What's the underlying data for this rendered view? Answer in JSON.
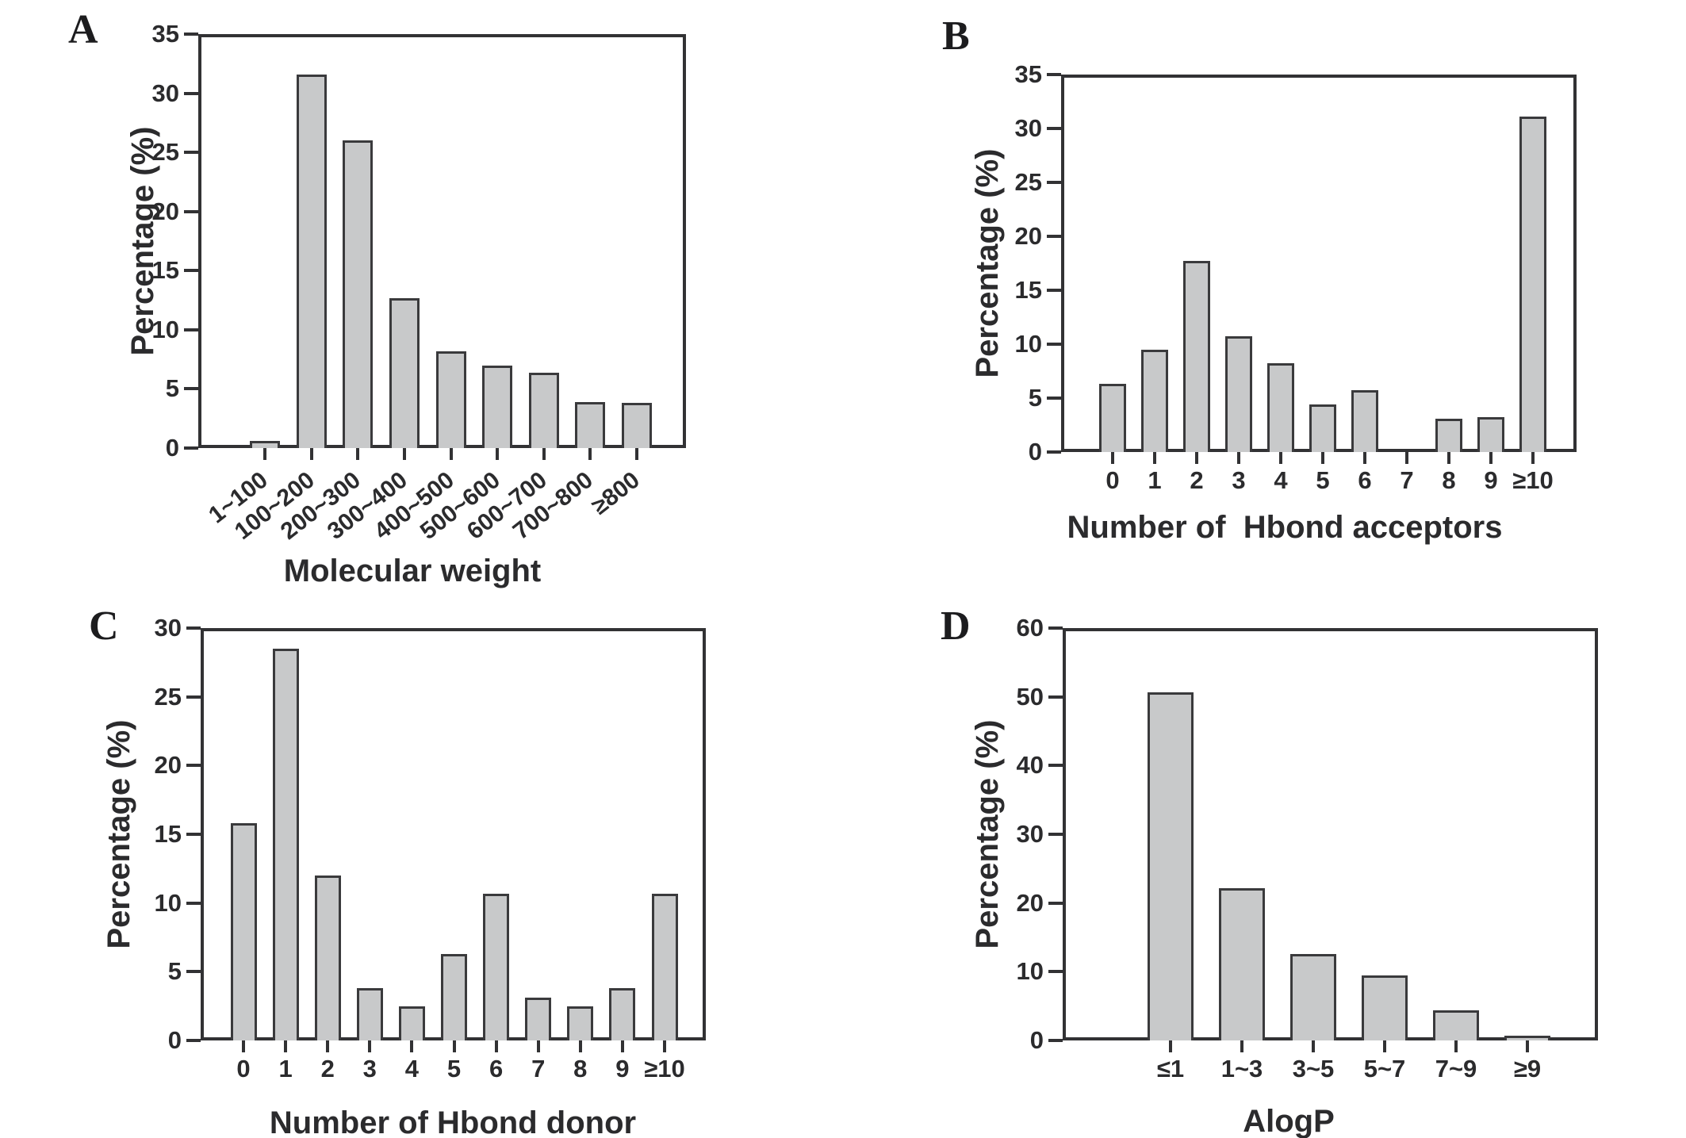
{
  "figure": {
    "description": "Four-panel bar chart figure of physicochemical property distributions",
    "background": "#ffffff",
    "bar_fill_color": "#c8c9ca",
    "bar_border_color": "#3a3a3c",
    "axis_color": "#323234",
    "text_color": "#2b2b2d"
  },
  "chart_data": [
    {
      "type": "bar",
      "panel": "A",
      "title": "",
      "xlabel": "Molecular weight",
      "ylabel": "Percentage (%)",
      "categories": [
        "1~100",
        "100~200",
        "200~300",
        "300~400",
        "400~500",
        "500~600",
        "600~700",
        "700~800",
        "≥800"
      ],
      "values": [
        0.6,
        31.6,
        26.0,
        12.7,
        8.2,
        7.0,
        6.4,
        3.9,
        3.8
      ],
      "ylim": [
        0,
        35
      ],
      "ytick_step": 5,
      "grid": false,
      "legend": null,
      "xtick_rotation_deg": 38
    },
    {
      "type": "bar",
      "panel": "B",
      "title": "",
      "xlabel": "Number of  Hbond acceptors",
      "ylabel": "Percentage (%)",
      "categories": [
        "0",
        "1",
        "2",
        "3",
        "4",
        "5",
        "6",
        "7",
        "8",
        "9",
        "≥10"
      ],
      "values": [
        6.3,
        9.5,
        17.7,
        10.7,
        8.2,
        4.4,
        5.7,
        0,
        3.1,
        3.2,
        31.1
      ],
      "ylim": [
        0,
        35
      ],
      "ytick_step": 5,
      "grid": false,
      "legend": null,
      "xtick_rotation_deg": 0
    },
    {
      "type": "bar",
      "panel": "C",
      "title": "",
      "xlabel": "Number of Hbond donor",
      "ylabel": "Percentage (%)",
      "categories": [
        "0",
        "1",
        "2",
        "3",
        "4",
        "5",
        "6",
        "7",
        "8",
        "9",
        "≥10"
      ],
      "values": [
        15.8,
        28.5,
        12.0,
        3.8,
        2.5,
        6.3,
        10.7,
        3.1,
        2.5,
        3.8,
        10.7
      ],
      "ylim": [
        0,
        30
      ],
      "ytick_step": 5,
      "grid": false,
      "legend": null,
      "xtick_rotation_deg": 0
    },
    {
      "type": "bar",
      "panel": "D",
      "title": "",
      "xlabel": "AlogP",
      "ylabel": "Percentage (%)",
      "categories": [
        "≤1",
        "1~3",
        "3~5",
        "5~7",
        "7~9",
        "≥9"
      ],
      "values": [
        50.7,
        22.2,
        12.6,
        9.5,
        4.4,
        0.7
      ],
      "ylim": [
        0,
        60
      ],
      "ytick_step": 10,
      "grid": false,
      "legend": null,
      "xtick_rotation_deg": 0
    }
  ]
}
